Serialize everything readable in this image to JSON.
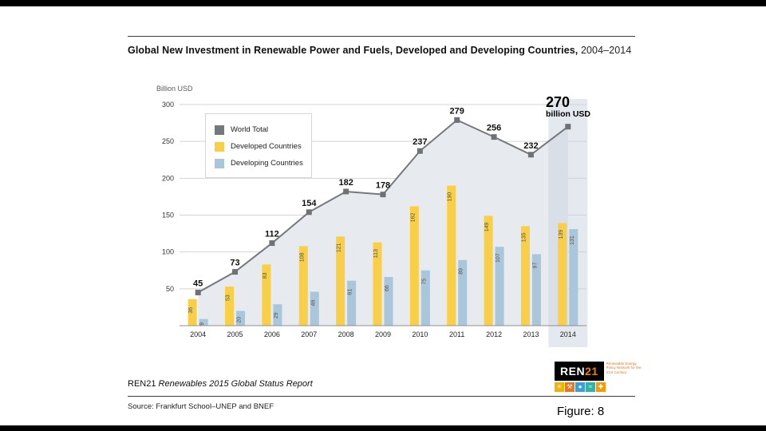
{
  "page": {
    "title_bold": "Global New Investment in Renewable Power and Fuels, Developed and Developing Countries,",
    "title_period": " 2004–2014"
  },
  "chart_data": {
    "type": "combo-bar-line",
    "title": "Global New Investment in Renewable Power and Fuels, Developed and Developing Countries, 2004–2014",
    "y_axis_label": "Billion USD",
    "ylim": [
      0,
      300
    ],
    "yticks": [
      50,
      100,
      150,
      200,
      250,
      300
    ],
    "grid": true,
    "legend_position": "top-left",
    "categories": [
      "2004",
      "2005",
      "2006",
      "2007",
      "2008",
      "2009",
      "2010",
      "2011",
      "2012",
      "2013",
      "2014"
    ],
    "series": [
      {
        "name": "World Total",
        "type": "line",
        "color": "#75787d",
        "values": [
          45,
          73,
          112,
          154,
          182,
          178,
          237,
          279,
          256,
          232,
          270
        ]
      },
      {
        "name": "Developed Countries",
        "type": "bar",
        "color": "#f8cf47",
        "values": [
          36,
          53,
          83,
          108,
          121,
          113,
          162,
          190,
          149,
          135,
          139
        ]
      },
      {
        "name": "Developing Countries",
        "type": "bar",
        "color": "#a9c6db",
        "values": [
          9,
          20,
          29,
          46,
          61,
          66,
          75,
          89,
          107,
          97,
          131
        ]
      }
    ],
    "area_fill": "#e7ebef",
    "highlight": {
      "category": "2014",
      "band_color": "#c9d3e0",
      "value": "270",
      "unit": "billion USD"
    }
  },
  "footer": {
    "brand": "REN21",
    "report_title": "Renewables 2015 Global Status Report",
    "source": "Source: Frankfurt School–UNEP and BNEF",
    "figure_label": "Figure: 8",
    "logo": {
      "text_main": "REN",
      "text_accent": "21",
      "tagline": "Renewable Energy Policy Network for the 21st Century",
      "icons": [
        {
          "name": "sun-icon",
          "glyph": "☀",
          "color": "#f2b200"
        },
        {
          "name": "people-icon",
          "glyph": "⚒",
          "color": "#e87722"
        },
        {
          "name": "water-icon",
          "glyph": "●",
          "color": "#3aa0d8"
        },
        {
          "name": "waves-icon",
          "glyph": "≈",
          "color": "#2fb4a3"
        },
        {
          "name": "leaf-icon",
          "glyph": "✚",
          "color": "#f59c00"
        }
      ]
    }
  }
}
